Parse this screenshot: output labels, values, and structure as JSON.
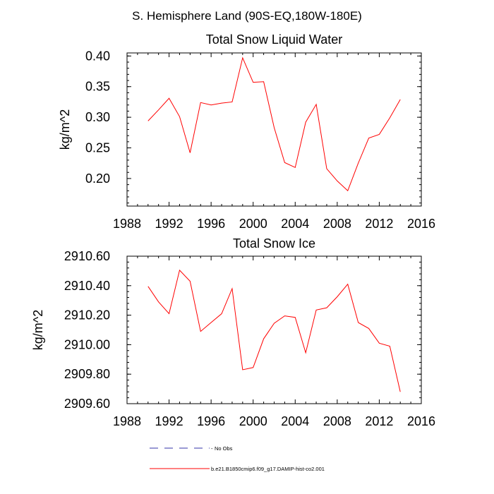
{
  "title": "S. Hemisphere Land (90S-EQ,180W-180E)",
  "colors": {
    "series": "#ff0000",
    "obs": "#3333aa",
    "axis": "#000000"
  },
  "legend": {
    "obs_label": "No Obs",
    "series_label": "b.e21.B1850cmip6.f09_g17.DAMIP-hist-co2.001"
  },
  "chart_data": [
    {
      "type": "line",
      "title": "Total Snow Liquid Water",
      "ylabel": "kg/m^2",
      "xlabel": "",
      "xlim": [
        1988,
        2016
      ],
      "ylim": [
        0.155,
        0.405
      ],
      "xticks": [
        1988,
        1992,
        1996,
        2000,
        2004,
        2008,
        2012,
        2016
      ],
      "xtick_labels": [
        "1988",
        "1992",
        "1996",
        "2000",
        "2004",
        "2008",
        "2012",
        "2016"
      ],
      "yticks": [
        0.2,
        0.25,
        0.3,
        0.35,
        0.4
      ],
      "ytick_labels": [
        "0.20",
        "0.25",
        "0.30",
        "0.35",
        "0.40"
      ],
      "grid": false,
      "series": [
        {
          "name": "b.e21.B1850cmip6.f09_g17.DAMIP-hist-co2.001",
          "x": [
            1990,
            1991,
            1992,
            1993,
            1994,
            1995,
            1996,
            1997,
            1998,
            1999,
            2000,
            2001,
            2002,
            2003,
            2004,
            2005,
            2006,
            2007,
            2008,
            2009,
            2010,
            2011,
            2012,
            2013,
            2014
          ],
          "values": [
            0.294,
            0.312,
            0.331,
            0.301,
            0.242,
            0.324,
            0.32,
            0.323,
            0.325,
            0.397,
            0.357,
            0.358,
            0.283,
            0.226,
            0.218,
            0.292,
            0.321,
            0.216,
            0.196,
            0.18,
            0.225,
            0.266,
            0.272,
            0.299,
            0.329
          ]
        }
      ]
    },
    {
      "type": "line",
      "title": "Total Snow Ice",
      "ylabel": "kg/m^2",
      "xlabel": "",
      "xlim": [
        1988,
        2016
      ],
      "ylim": [
        2909.6,
        2910.6
      ],
      "xticks": [
        1988,
        1992,
        1996,
        2000,
        2004,
        2008,
        2012,
        2016
      ],
      "xtick_labels": [
        "1988",
        "1992",
        "1996",
        "2000",
        "2004",
        "2008",
        "2012",
        "2016"
      ],
      "yticks": [
        2909.6,
        2909.8,
        2910.0,
        2910.2,
        2910.4,
        2910.6
      ],
      "ytick_labels": [
        "2909.60",
        "2909.80",
        "2910.00",
        "2910.20",
        "2910.40",
        "2910.60"
      ],
      "grid": false,
      "series": [
        {
          "name": "b.e21.B1850cmip6.f09_g17.DAMIP-hist-co2.001",
          "x": [
            1990,
            1991,
            1992,
            1993,
            1994,
            1995,
            1996,
            1997,
            1998,
            1999,
            2000,
            2001,
            2002,
            2003,
            2004,
            2005,
            2006,
            2007,
            2008,
            2009,
            2010,
            2011,
            2012,
            2013,
            2014
          ],
          "values": [
            2910.395,
            2910.29,
            2910.21,
            2910.505,
            2910.43,
            2910.09,
            2910.15,
            2910.21,
            2910.38,
            2909.83,
            2909.845,
            2910.04,
            2910.145,
            2910.195,
            2910.185,
            2909.945,
            2910.235,
            2910.25,
            2910.325,
            2910.41,
            2910.15,
            2910.11,
            2910.01,
            2909.99,
            2909.68
          ]
        }
      ]
    }
  ]
}
